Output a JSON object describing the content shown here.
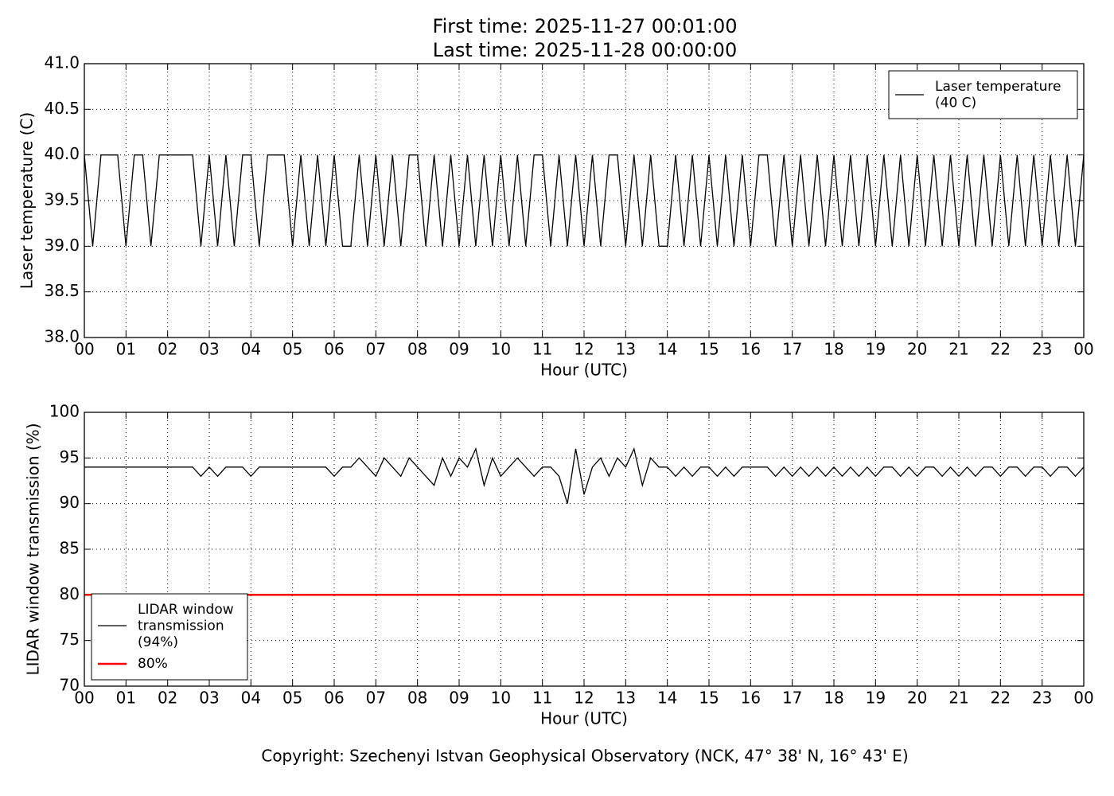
{
  "chart_data": [
    {
      "type": "line",
      "title": "First time: 2025-11-27 00:01:00",
      "subtitle": "Last time: 2025-11-28 00:00:00",
      "xlabel": "Hour (UTC)",
      "ylabel": "Laser temperature (C)",
      "xlim": [
        0,
        24
      ],
      "ylim": [
        38,
        41
      ],
      "xticks": [
        {
          "value": 0,
          "label": "00"
        },
        {
          "value": 1,
          "label": "01"
        },
        {
          "value": 2,
          "label": "02"
        },
        {
          "value": 3,
          "label": "03"
        },
        {
          "value": 4,
          "label": "04"
        },
        {
          "value": 5,
          "label": "05"
        },
        {
          "value": 6,
          "label": "06"
        },
        {
          "value": 7,
          "label": "07"
        },
        {
          "value": 8,
          "label": "08"
        },
        {
          "value": 9,
          "label": "09"
        },
        {
          "value": 10,
          "label": "10"
        },
        {
          "value": 11,
          "label": "11"
        },
        {
          "value": 12,
          "label": "12"
        },
        {
          "value": 13,
          "label": "13"
        },
        {
          "value": 14,
          "label": "14"
        },
        {
          "value": 15,
          "label": "15"
        },
        {
          "value": 16,
          "label": "16"
        },
        {
          "value": 17,
          "label": "17"
        },
        {
          "value": 18,
          "label": "18"
        },
        {
          "value": 19,
          "label": "19"
        },
        {
          "value": 20,
          "label": "20"
        },
        {
          "value": 21,
          "label": "21"
        },
        {
          "value": 22,
          "label": "22"
        },
        {
          "value": 23,
          "label": "23"
        },
        {
          "value": 24,
          "label": "00"
        }
      ],
      "yticks": [
        {
          "value": 38,
          "label": "38.0"
        },
        {
          "value": 38.5,
          "label": "38.5"
        },
        {
          "value": 39,
          "label": "39.0"
        },
        {
          "value": 39.5,
          "label": "39.5"
        },
        {
          "value": 40,
          "label": "40.0"
        },
        {
          "value": 40.5,
          "label": "40.5"
        },
        {
          "value": 41,
          "label": "41.0"
        }
      ],
      "grid": true,
      "legend": "upper right",
      "x": [
        0,
        0.2,
        0.4,
        0.6,
        0.8,
        1,
        1.2,
        1.4,
        1.6,
        1.8,
        2,
        2.2,
        2.4,
        2.6,
        2.8,
        3,
        3.2,
        3.4,
        3.6,
        3.8,
        4,
        4.2,
        4.4,
        4.6,
        4.8,
        5,
        5.2,
        5.4,
        5.6,
        5.8,
        6,
        6.2,
        6.4,
        6.6,
        6.8,
        7,
        7.2,
        7.4,
        7.6,
        7.8,
        8,
        8.2,
        8.4,
        8.6,
        8.8,
        9,
        9.2,
        9.4,
        9.6,
        9.8,
        10,
        10.2,
        10.4,
        10.6,
        10.8,
        11,
        11.2,
        11.4,
        11.6,
        11.8,
        12,
        12.2,
        12.4,
        12.6,
        12.8,
        13,
        13.2,
        13.4,
        13.6,
        13.8,
        14,
        14.2,
        14.4,
        14.6,
        14.8,
        15,
        15.2,
        15.4,
        15.6,
        15.8,
        16,
        16.2,
        16.4,
        16.6,
        16.8,
        17,
        17.2,
        17.4,
        17.6,
        17.8,
        18,
        18.2,
        18.4,
        18.6,
        18.8,
        19,
        19.2,
        19.4,
        19.6,
        19.8,
        20,
        20.2,
        20.4,
        20.6,
        20.8,
        21,
        21.2,
        21.4,
        21.6,
        21.8,
        22,
        22.2,
        22.4,
        22.6,
        22.8,
        23,
        23.2,
        23.4,
        23.6,
        23.8,
        24
      ],
      "series": [
        {
          "name": "Laser temperature\n(40 C)",
          "color": "#000000",
          "width": 1.3,
          "values": [
            40,
            39,
            40,
            40,
            40,
            39,
            40,
            40,
            39,
            40,
            40,
            40,
            40,
            40,
            39,
            40,
            39,
            40,
            39,
            40,
            40,
            39,
            40,
            40,
            40,
            39,
            40,
            39,
            40,
            39,
            40,
            39,
            39,
            40,
            39,
            40,
            39,
            40,
            39,
            40,
            40,
            39,
            40,
            39,
            40,
            39,
            40,
            39,
            40,
            39,
            40,
            39,
            40,
            39,
            40,
            40,
            39,
            40,
            39,
            40,
            39,
            40,
            39,
            40,
            40,
            39,
            40,
            39,
            40,
            39,
            39,
            40,
            39,
            40,
            39,
            40,
            39,
            40,
            39,
            40,
            39,
            40,
            40,
            39,
            40,
            39,
            40,
            39,
            40,
            39,
            40,
            39,
            40,
            39,
            40,
            39,
            40,
            39,
            40,
            39,
            40,
            39,
            40,
            39,
            40,
            39,
            40,
            39,
            40,
            39,
            40,
            39,
            40,
            39,
            40,
            39,
            40,
            39,
            40,
            39,
            40
          ]
        }
      ]
    },
    {
      "type": "line",
      "xlabel": "Hour (UTC)",
      "ylabel": "LIDAR window transmission (%)",
      "xlim": [
        0,
        24
      ],
      "ylim": [
        70,
        100
      ],
      "xticks": [
        {
          "value": 0,
          "label": "00"
        },
        {
          "value": 1,
          "label": "01"
        },
        {
          "value": 2,
          "label": "02"
        },
        {
          "value": 3,
          "label": "03"
        },
        {
          "value": 4,
          "label": "04"
        },
        {
          "value": 5,
          "label": "05"
        },
        {
          "value": 6,
          "label": "06"
        },
        {
          "value": 7,
          "label": "07"
        },
        {
          "value": 8,
          "label": "08"
        },
        {
          "value": 9,
          "label": "09"
        },
        {
          "value": 10,
          "label": "10"
        },
        {
          "value": 11,
          "label": "11"
        },
        {
          "value": 12,
          "label": "12"
        },
        {
          "value": 13,
          "label": "13"
        },
        {
          "value": 14,
          "label": "14"
        },
        {
          "value": 15,
          "label": "15"
        },
        {
          "value": 16,
          "label": "16"
        },
        {
          "value": 17,
          "label": "17"
        },
        {
          "value": 18,
          "label": "18"
        },
        {
          "value": 19,
          "label": "19"
        },
        {
          "value": 20,
          "label": "20"
        },
        {
          "value": 21,
          "label": "21"
        },
        {
          "value": 22,
          "label": "22"
        },
        {
          "value": 23,
          "label": "23"
        },
        {
          "value": 24,
          "label": "00"
        }
      ],
      "yticks": [
        70,
        75,
        80,
        85,
        90,
        95,
        100
      ],
      "grid": true,
      "legend": "lower left",
      "x": [
        0,
        0.2,
        0.4,
        0.6,
        0.8,
        1,
        1.2,
        1.4,
        1.6,
        1.8,
        2,
        2.2,
        2.4,
        2.6,
        2.8,
        3,
        3.2,
        3.4,
        3.6,
        3.8,
        4,
        4.2,
        4.4,
        4.6,
        4.8,
        5,
        5.2,
        5.4,
        5.6,
        5.8,
        6,
        6.2,
        6.4,
        6.6,
        6.8,
        7,
        7.2,
        7.4,
        7.6,
        7.8,
        8,
        8.2,
        8.4,
        8.6,
        8.8,
        9,
        9.2,
        9.4,
        9.6,
        9.8,
        10,
        10.2,
        10.4,
        10.6,
        10.8,
        11,
        11.2,
        11.4,
        11.6,
        11.8,
        12,
        12.2,
        12.4,
        12.6,
        12.8,
        13,
        13.2,
        13.4,
        13.6,
        13.8,
        14,
        14.2,
        14.4,
        14.6,
        14.8,
        15,
        15.2,
        15.4,
        15.6,
        15.8,
        16,
        16.2,
        16.4,
        16.6,
        16.8,
        17,
        17.2,
        17.4,
        17.6,
        17.8,
        18,
        18.2,
        18.4,
        18.6,
        18.8,
        19,
        19.2,
        19.4,
        19.6,
        19.8,
        20,
        20.2,
        20.4,
        20.6,
        20.8,
        21,
        21.2,
        21.4,
        21.6,
        21.8,
        22,
        22.2,
        22.4,
        22.6,
        22.8,
        23,
        23.2,
        23.4,
        23.6,
        23.8,
        24
      ],
      "series": [
        {
          "name": "LIDAR window\ntransmission\n(94%)",
          "color": "#000000",
          "width": 1.3,
          "values": [
            94,
            94,
            94,
            94,
            94,
            94,
            94,
            94,
            94,
            94,
            94,
            94,
            94,
            94,
            93,
            94,
            93,
            94,
            94,
            94,
            93,
            94,
            94,
            94,
            94,
            94,
            94,
            94,
            94,
            94,
            93,
            94,
            94,
            95,
            94,
            93,
            95,
            94,
            93,
            95,
            94,
            93,
            92,
            95,
            93,
            95,
            94,
            96,
            92,
            95,
            93,
            94,
            95,
            94,
            93,
            94,
            94,
            93,
            90,
            96,
            91,
            94,
            95,
            93,
            95,
            94,
            96,
            92,
            95,
            94,
            94,
            93,
            94,
            93,
            94,
            94,
            93,
            94,
            93,
            94,
            94,
            94,
            94,
            93,
            94,
            93,
            94,
            93,
            94,
            93,
            94,
            93,
            94,
            93,
            94,
            93,
            94,
            94,
            93,
            94,
            93,
            94,
            94,
            93,
            94,
            93,
            94,
            93,
            94,
            94,
            93,
            94,
            94,
            93,
            94,
            94,
            93,
            94,
            94,
            93,
            94
          ]
        },
        {
          "name": "80%",
          "color": "#ff0000",
          "width": 2.5,
          "x": [
            0,
            24
          ],
          "values": [
            80,
            80
          ]
        }
      ]
    }
  ],
  "footer": "Copyright: Szechenyi Istvan Geophysical Observatory (NCK, 47° 38' N, 16° 43' E)"
}
